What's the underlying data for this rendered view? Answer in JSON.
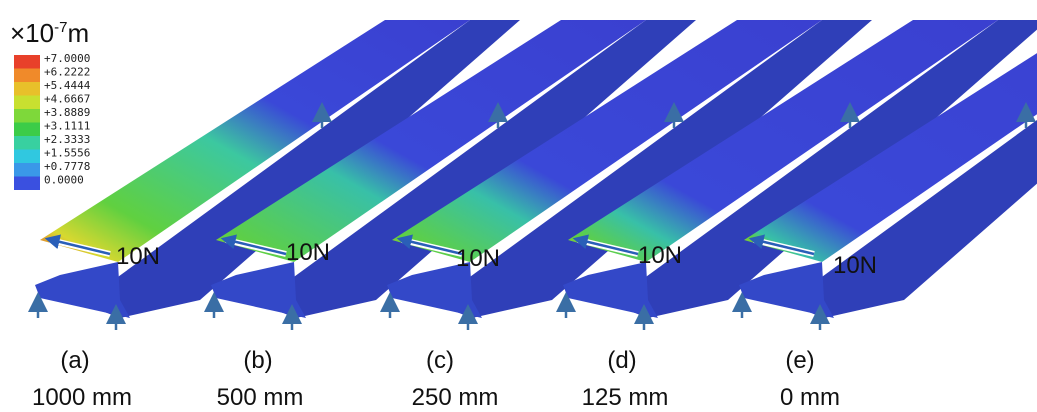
{
  "colorbar": {
    "unit": {
      "base": "×10",
      "exponent": "-7",
      "suffix": "m"
    },
    "labels": [
      "+7.0000",
      "+6.2222",
      "+5.4444",
      "+4.6667",
      "+3.8889",
      "+3.1111",
      "+2.3333",
      "+1.5556",
      "+0.7778",
      "0.0000"
    ]
  },
  "panels": [
    {
      "label": "(a)",
      "distance": "1000 mm",
      "force": "10N"
    },
    {
      "label": "(b)",
      "distance": "500 mm",
      "force": "10N"
    },
    {
      "label": "(c)",
      "distance": "250 mm",
      "force": "10N"
    },
    {
      "label": "(d)",
      "distance": "125 mm",
      "force": "10N"
    },
    {
      "label": "(e)",
      "distance": "0 mm",
      "force": "10N"
    }
  ]
}
